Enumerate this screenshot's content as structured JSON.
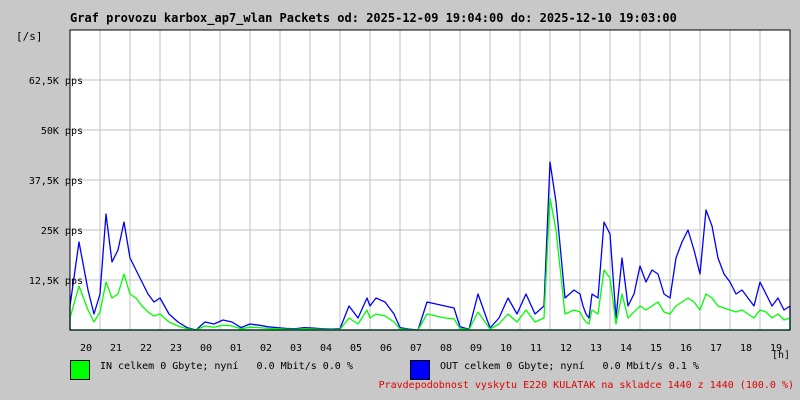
{
  "title": "Graf provozu karbox_ap7_wlan Packets od: 2025-12-09 19:04:00 do: 2025-12-10 19:03:00",
  "y_unit": "[/s]",
  "x_unit": "[h]",
  "legend": {
    "in_label": "IN celkem 0 Gbyte; nyní   0.0 Mbit/s 0.0 %",
    "out_label": "OUT celkem 0 Gbyte; nyní   0.0 Mbit/s 0.1 %",
    "in_color": "#00ff00",
    "out_color": "#0000ff"
  },
  "footer": "Pravdepodobnost vyskytu E220 KULATAK na skladce 1440 z 1440 (100.0 %)",
  "chart_data": {
    "type": "area",
    "title": "Graf provozu karbox_ap7_wlan Packets od: 2025-12-09 19:04:00 do: 2025-12-10 19:03:00",
    "ylabel": "[/s]",
    "xlabel": "[h]",
    "ylim": [
      0,
      75000
    ],
    "x_ticks": [
      "20",
      "21",
      "22",
      "23",
      "00",
      "01",
      "02",
      "03",
      "04",
      "05",
      "06",
      "07",
      "08",
      "09",
      "10",
      "11",
      "12",
      "13",
      "14",
      "15",
      "16",
      "17",
      "18",
      "19"
    ],
    "y_ticks": [
      {
        "value": 12500,
        "label": "12,5K pps"
      },
      {
        "value": 25000,
        "label": "25K pps"
      },
      {
        "value": 37500,
        "label": "37,5K pps"
      },
      {
        "value": 50000,
        "label": "50K pps"
      },
      {
        "value": 62500,
        "label": "62,5K pps"
      }
    ],
    "grid": true,
    "x_hours": [
      19.0,
      19.3,
      19.6,
      19.8,
      20.0,
      20.2,
      20.4,
      20.6,
      20.8,
      21.0,
      21.2,
      21.4,
      21.6,
      21.8,
      22.0,
      22.3,
      22.6,
      22.9,
      23.2,
      23.5,
      23.8,
      24.1,
      24.4,
      24.7,
      25.0,
      25.3,
      25.6,
      25.9,
      26.2,
      26.5,
      26.8,
      27.1,
      27.4,
      27.7,
      28.0,
      28.3,
      28.6,
      28.9,
      29.0,
      29.2,
      29.5,
      29.8,
      30.0,
      30.3,
      30.6,
      30.9,
      31.2,
      31.5,
      31.8,
      32.0,
      32.3,
      32.6,
      33.0,
      33.3,
      33.6,
      33.9,
      34.2,
      34.5,
      34.8,
      35.0,
      35.2,
      35.5,
      35.8,
      36.0,
      36.1,
      36.2,
      36.3,
      36.4,
      36.6,
      36.8,
      37.0,
      37.2,
      37.4,
      37.6,
      37.8,
      38.0,
      38.2,
      38.4,
      38.6,
      38.8,
      39.0,
      39.2,
      39.4,
      39.6,
      39.8,
      40.0,
      40.2,
      40.4,
      40.6,
      40.8,
      41.0,
      41.2,
      41.4,
      41.6,
      41.8,
      42.0,
      42.2,
      42.4,
      42.6,
      42.8,
      43.0
    ],
    "series": [
      {
        "name": "OUT",
        "color": "#0000ff",
        "values": [
          6000,
          22000,
          10000,
          4000,
          9000,
          29000,
          17000,
          20000,
          27000,
          18000,
          15000,
          12000,
          9000,
          7000,
          8000,
          4000,
          2000,
          600,
          0,
          2000,
          1500,
          2500,
          2000,
          600,
          1500,
          1200,
          800,
          600,
          400,
          300,
          600,
          500,
          300,
          200,
          300,
          6000,
          3000,
          8000,
          6000,
          8000,
          7000,
          4000,
          600,
          200,
          0,
          7000,
          6500,
          6000,
          5500,
          800,
          200,
          9000,
          500,
          3000,
          8000,
          4000,
          9000,
          4000,
          6000,
          42000,
          32000,
          8000,
          10000,
          9000,
          6000,
          4000,
          3000,
          9000,
          8000,
          27000,
          24000,
          3000,
          18000,
          6000,
          9000,
          16000,
          12000,
          15000,
          14000,
          9000,
          8000,
          18000,
          22000,
          25000,
          20000,
          14000,
          30000,
          26000,
          18000,
          14000,
          12000,
          9000,
          10000,
          8000,
          6000,
          12000,
          9000,
          6000,
          8000,
          5000,
          6000
        ]
      },
      {
        "name": "IN",
        "color": "#00ff00",
        "values": [
          3000,
          11000,
          5000,
          2000,
          4500,
          12000,
          8000,
          9000,
          14000,
          9000,
          8000,
          6000,
          4500,
          3500,
          4000,
          2000,
          1000,
          300,
          0,
          1000,
          700,
          1200,
          1000,
          300,
          700,
          600,
          400,
          300,
          200,
          150,
          300,
          250,
          150,
          100,
          150,
          3000,
          1500,
          5000,
          3000,
          4000,
          3500,
          2000,
          300,
          100,
          0,
          4000,
          3500,
          3000,
          2800,
          400,
          100,
          4500,
          250,
          1500,
          4000,
          2000,
          5000,
          2000,
          3000,
          33000,
          25000,
          4000,
          5000,
          4500,
          3000,
          2000,
          1500,
          5000,
          4000,
          15000,
          13000,
          1500,
          9000,
          3000,
          4500,
          6000,
          5000,
          6000,
          7000,
          4500,
          4000,
          6000,
          7000,
          8000,
          7000,
          5000,
          9000,
          8000,
          6000,
          5500,
          5000,
          4500,
          5000,
          4000,
          3000,
          5000,
          4500,
          3000,
          4000,
          2500,
          3000
        ]
      }
    ]
  }
}
